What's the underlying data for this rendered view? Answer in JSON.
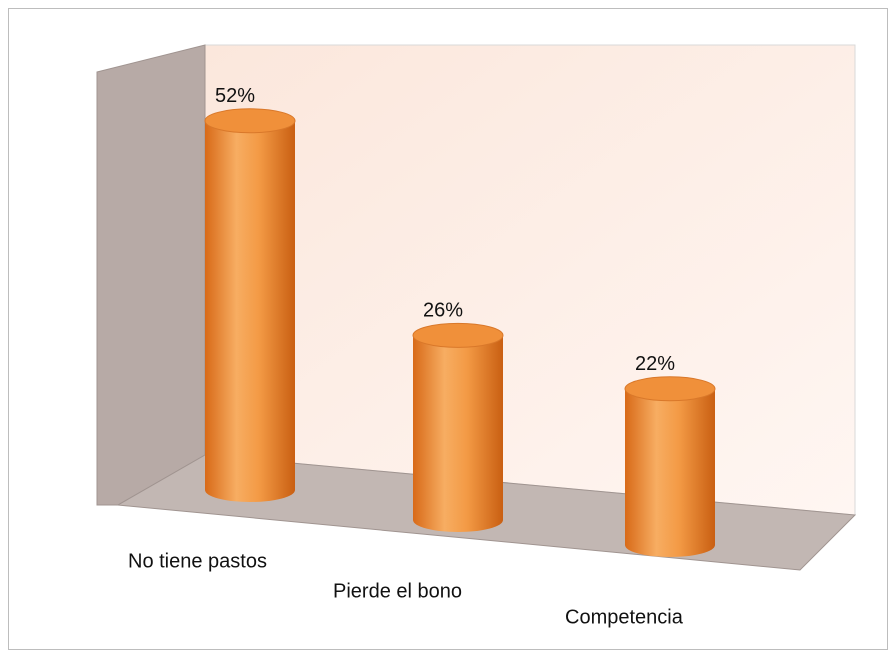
{
  "chart_data": {
    "type": "bar3d",
    "categories": [
      "No tiene pastos",
      "Pierde el bono",
      "Competencia"
    ],
    "values": [
      52,
      26,
      22
    ],
    "value_labels": [
      "52%",
      "26%",
      "22%"
    ],
    "color": "#f0903a"
  }
}
